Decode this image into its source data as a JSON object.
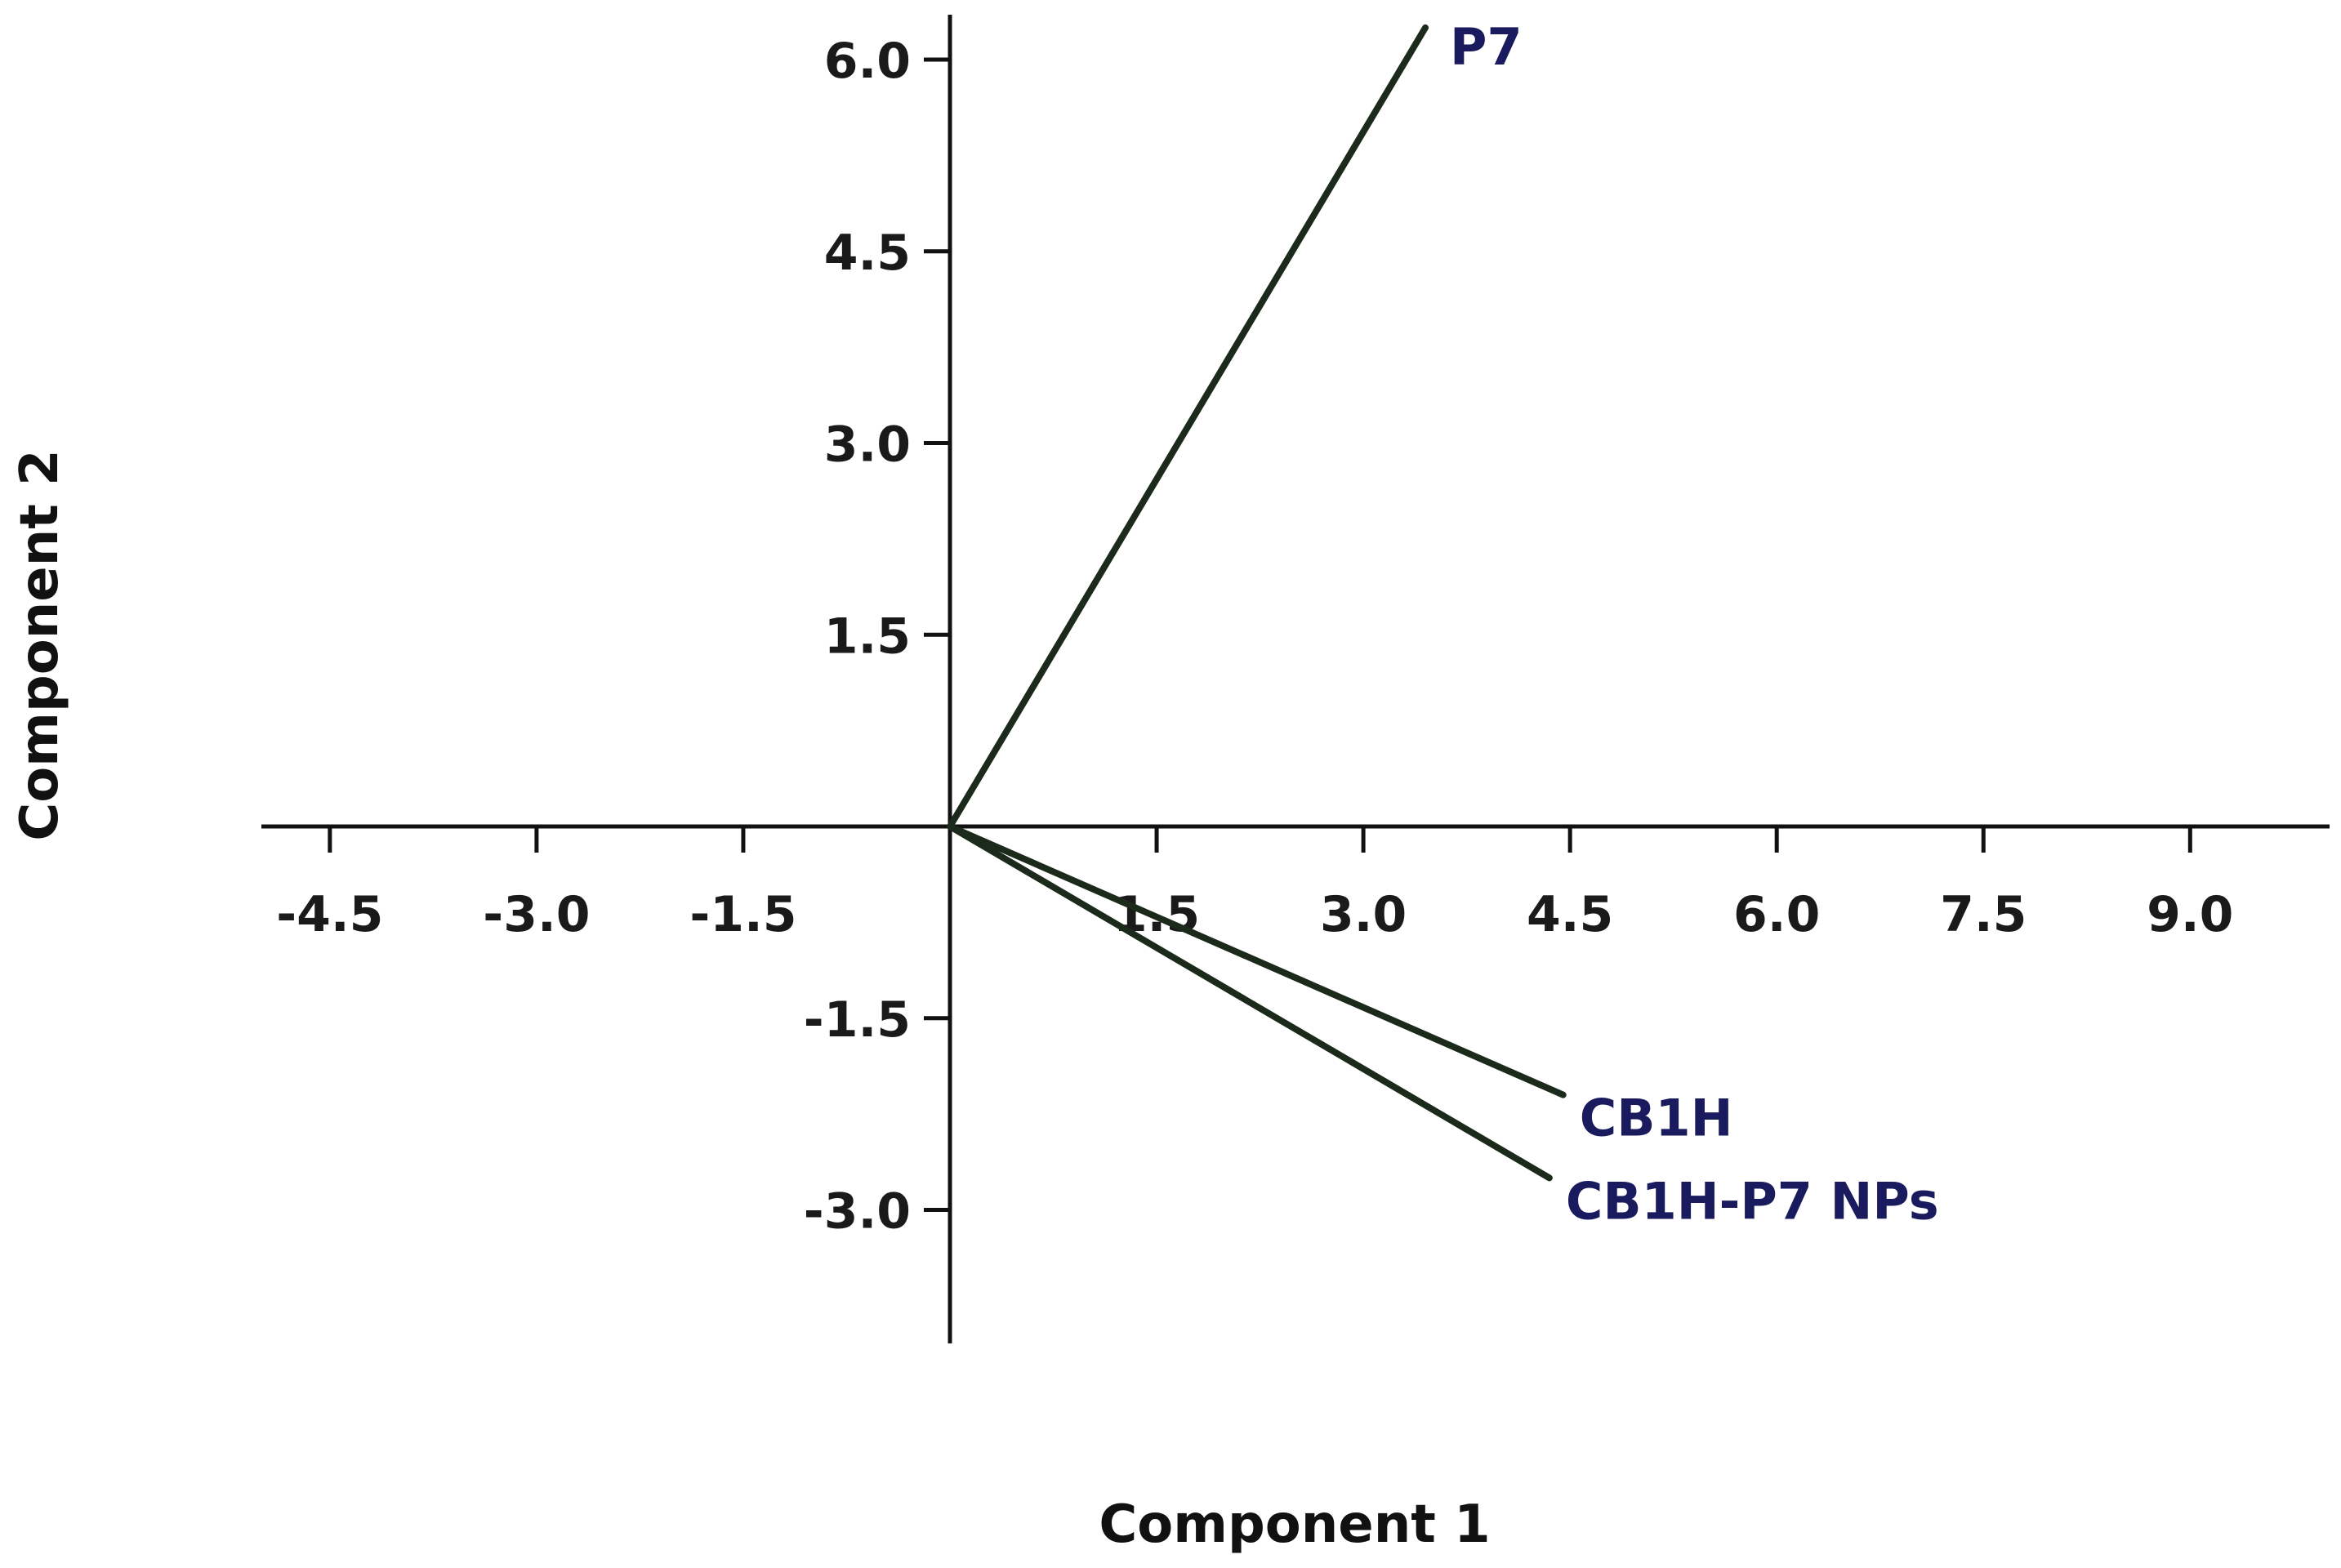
{
  "chart_data": {
    "type": "line",
    "title": "",
    "xlabel": "Component 1",
    "ylabel": "Component 2",
    "xlim": [
      -5.2,
      10.0
    ],
    "ylim": [
      -4.0,
      6.3
    ],
    "x_ticks": [
      -4.5,
      -3.0,
      -1.5,
      1.5,
      3.0,
      4.5,
      6.0,
      7.5,
      9.0
    ],
    "x_tick_labels": [
      "-4.5",
      "-3.0",
      "-1.5",
      "1.5",
      "3.0",
      "4.5",
      "6.0",
      "7.5",
      "9.0"
    ],
    "y_ticks": [
      6.0,
      4.5,
      3.0,
      1.5,
      -1.5,
      -3.0
    ],
    "y_tick_labels": [
      "6.0",
      "4.5",
      "3.0",
      "1.5",
      "-1.5",
      "-3.0"
    ],
    "grid": false,
    "series": [
      {
        "name": "P7",
        "x": [
          0,
          3.45
        ],
        "y": [
          0,
          6.25
        ]
      },
      {
        "name": "CB1H",
        "x": [
          0,
          4.45
        ],
        "y": [
          0,
          -2.1
        ]
      },
      {
        "name": "CB1H-P7 NPs",
        "x": [
          0,
          4.35
        ],
        "y": [
          0,
          -2.75
        ]
      }
    ],
    "colors": {
      "line": "#1c2a1c",
      "label": "#1a1a5e",
      "axis": "#111111"
    }
  }
}
